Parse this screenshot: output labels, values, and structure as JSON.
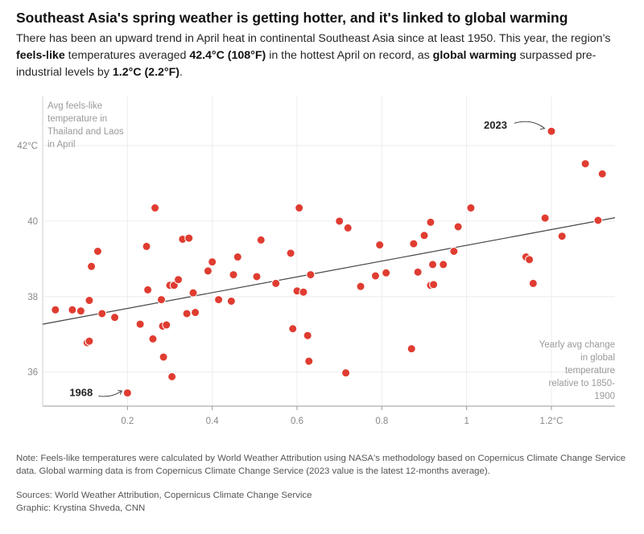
{
  "header": {
    "title": "Southeast Asia's spring weather is getting hotter, and it's linked to global warming",
    "sub_p1": "There has been an upward trend in April heat in continental Southeast Asia since at least 1950. This year, the region’s ",
    "sub_b1": "feels-like",
    "sub_p2": " temperatures averaged ",
    "sub_b2": "42.4°C (108°F)",
    "sub_p3": " in the hottest April on record, as ",
    "sub_b3": "global warming",
    "sub_p4": " surpassed pre-industrial levels by ",
    "sub_b4": "1.2°C (2.2°F)",
    "sub_p5": "."
  },
  "chart_data": {
    "type": "scatter",
    "ylabel_lines": [
      "Avg feels-like",
      "temperature in",
      "Thailand and Laos",
      "in April"
    ],
    "xlabel_lines": [
      "Yearly avg change",
      "in global",
      "temperature",
      "relative to 1850-",
      "1900"
    ],
    "x_ticks": [
      "0.2",
      "0.4",
      "0.6",
      "0.8",
      "1",
      "1.2°C"
    ],
    "x_tick_values": [
      0.2,
      0.4,
      0.6,
      0.8,
      1.0,
      1.2
    ],
    "y_ticks": [
      "36",
      "38",
      "40",
      "42°C"
    ],
    "y_tick_values": [
      36,
      38,
      40,
      42
    ],
    "xlim": [
      0.0,
      1.35
    ],
    "ylim": [
      35.1,
      43.3
    ],
    "grid": true,
    "point_color": "#e03c31",
    "trend_color": "#444444",
    "trend_line": {
      "x": [
        0.0,
        1.35
      ],
      "y": [
        37.27,
        40.09
      ]
    },
    "annotations": [
      {
        "label": "1968",
        "x": 0.2,
        "y": 35.45
      },
      {
        "label": "2023",
        "x": 1.2,
        "y": 42.38
      }
    ],
    "points": [
      [
        0.03,
        37.65
      ],
      [
        0.07,
        37.65
      ],
      [
        0.09,
        37.62
      ],
      [
        0.105,
        36.78
      ],
      [
        0.11,
        37.9
      ],
      [
        0.11,
        36.82
      ],
      [
        0.115,
        38.8
      ],
      [
        0.13,
        39.2
      ],
      [
        0.14,
        37.55
      ],
      [
        0.17,
        37.45
      ],
      [
        0.2,
        35.45
      ],
      [
        0.23,
        37.27
      ],
      [
        0.245,
        39.33
      ],
      [
        0.248,
        38.18
      ],
      [
        0.26,
        36.88
      ],
      [
        0.265,
        40.35
      ],
      [
        0.28,
        37.92
      ],
      [
        0.283,
        37.22
      ],
      [
        0.285,
        36.4
      ],
      [
        0.292,
        37.25
      ],
      [
        0.3,
        38.3
      ],
      [
        0.305,
        35.88
      ],
      [
        0.31,
        38.3
      ],
      [
        0.32,
        38.45
      ],
      [
        0.33,
        39.52
      ],
      [
        0.34,
        37.55
      ],
      [
        0.345,
        39.55
      ],
      [
        0.355,
        38.1
      ],
      [
        0.36,
        37.58
      ],
      [
        0.39,
        38.68
      ],
      [
        0.4,
        38.92
      ],
      [
        0.415,
        37.92
      ],
      [
        0.445,
        37.88
      ],
      [
        0.45,
        38.58
      ],
      [
        0.46,
        39.05
      ],
      [
        0.505,
        38.53
      ],
      [
        0.515,
        39.5
      ],
      [
        0.55,
        38.35
      ],
      [
        0.585,
        39.15
      ],
      [
        0.59,
        37.15
      ],
      [
        0.6,
        38.15
      ],
      [
        0.605,
        40.35
      ],
      [
        0.615,
        38.12
      ],
      [
        0.625,
        36.97
      ],
      [
        0.628,
        36.29
      ],
      [
        0.632,
        38.58
      ],
      [
        0.7,
        40.0
      ],
      [
        0.715,
        35.98
      ],
      [
        0.72,
        39.82
      ],
      [
        0.75,
        38.27
      ],
      [
        0.785,
        38.55
      ],
      [
        0.795,
        39.37
      ],
      [
        0.81,
        38.63
      ],
      [
        0.87,
        36.62
      ],
      [
        0.875,
        39.4
      ],
      [
        0.885,
        38.65
      ],
      [
        0.9,
        39.62
      ],
      [
        0.915,
        39.97
      ],
      [
        0.915,
        38.3
      ],
      [
        0.92,
        38.85
      ],
      [
        0.922,
        38.32
      ],
      [
        0.945,
        38.85
      ],
      [
        0.97,
        39.2
      ],
      [
        0.98,
        39.85
      ],
      [
        1.01,
        40.35
      ],
      [
        1.14,
        39.05
      ],
      [
        1.148,
        38.98
      ],
      [
        1.157,
        38.35
      ],
      [
        1.185,
        40.08
      ],
      [
        1.2,
        42.38
      ],
      [
        1.225,
        39.6
      ],
      [
        1.28,
        41.52
      ],
      [
        1.31,
        40.02
      ],
      [
        1.32,
        41.25
      ]
    ]
  },
  "footer": {
    "note": "Note: Feels-like temperatures were calculated by World Weather Attribution using NASA's methodology based on Copernicus Climate Change Service data. Global warming data is from Copernicus Climate Change Service (2023 value is the latest 12-months average).",
    "sources": "Sources: World Weather Attribution, Copernicus Climate Change Service",
    "graphic": "Graphic: Krystina Shveda, CNN"
  }
}
